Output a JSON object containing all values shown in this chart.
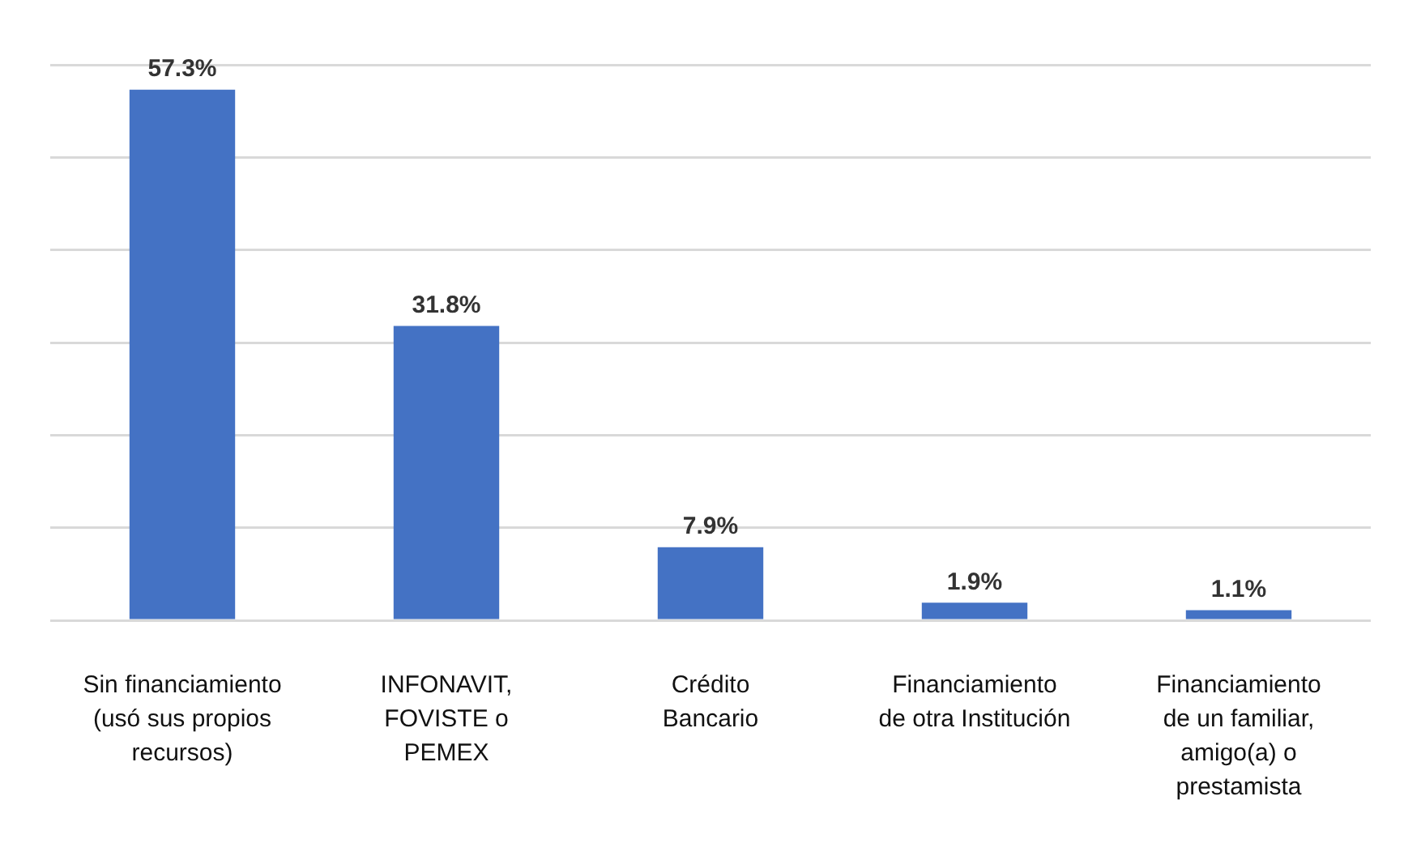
{
  "chart_data": {
    "type": "bar",
    "categories": [
      "Sin financiamiento\n(usó sus propios\nrecursos)",
      "INFONAVIT,\nFOVISTE o\nPEMEX",
      "Crédito\nBancario",
      "Financiamiento\nde otra Institución",
      "Financiamiento\nde un familiar,\namigo(a) o\nprestamista"
    ],
    "values": [
      57.3,
      31.8,
      7.9,
      1.9,
      1.1
    ],
    "value_labels": [
      "57.3%",
      "31.8%",
      "7.9%",
      "1.9%",
      "1.1%"
    ],
    "color": "#4472c4",
    "ylim": [
      0,
      60
    ],
    "yticks": [
      {
        "value": 0,
        "label": null
      },
      {
        "value": 10,
        "label": null
      },
      {
        "value": 20,
        "label": null
      },
      {
        "value": 30,
        "label": null
      },
      {
        "value": 40,
        "label": null
      },
      {
        "value": 50,
        "label": null
      },
      {
        "value": 60,
        "label": null
      }
    ],
    "grid": "y",
    "tick_labels": "x",
    "legend": false
  }
}
